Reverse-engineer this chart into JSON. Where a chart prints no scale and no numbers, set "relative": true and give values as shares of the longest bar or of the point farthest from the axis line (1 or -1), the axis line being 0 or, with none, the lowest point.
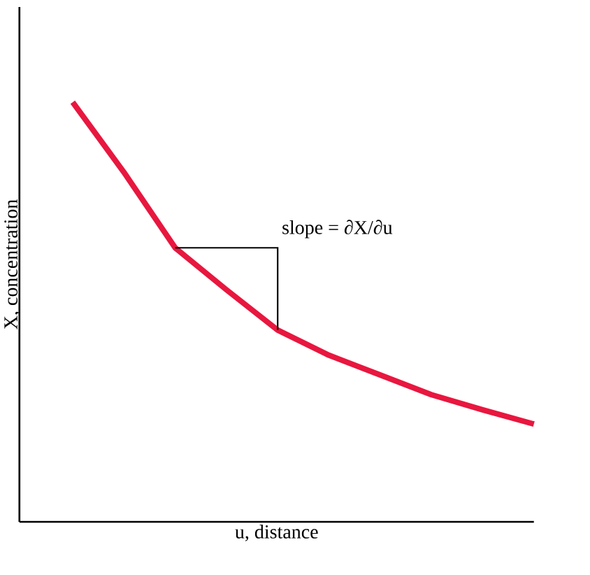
{
  "chart_data": {
    "type": "line",
    "relative": true,
    "xlabel": "u, distance",
    "ylabel": "X, concentration",
    "categories": [
      null,
      null,
      null,
      null,
      null,
      null,
      null,
      null,
      null,
      null
    ],
    "series": [
      {
        "color": "#e8173f",
        "values": [
          1,
          0.833,
          0.653,
          0.553,
          0.457,
          0.397,
          0.35,
          0.303,
          0.267,
          0.233
        ]
      }
    ],
    "annotations": [
      "slope = ∂X/∂u"
    ]
  }
}
